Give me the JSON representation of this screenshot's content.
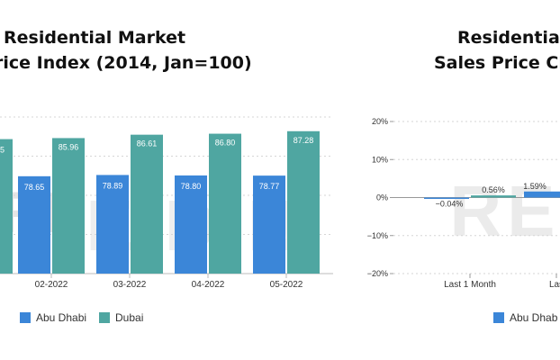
{
  "colors": {
    "abu_dhabi": "#3b86d8",
    "dubai": "#4fa6a1",
    "grid": "#d6d6d6",
    "watermark": "#e2e2e2"
  },
  "left": {
    "title_line1": "Residential Market",
    "title_line2": "rice Index (2014, Jan=100)",
    "watermark": "REIDIN",
    "legend": [
      "Abu Dhabi",
      "Dubai"
    ]
  },
  "right": {
    "title_line1": "Residential",
    "title_line2": "Sales Price Ch",
    "watermark": "REI",
    "legend": [
      "Abu Dhab"
    ]
  },
  "chart_data": [
    {
      "type": "bar",
      "title": "Residential Market rice Index (2014, Jan=100)",
      "categories": [
        "02-2022",
        "03-2022",
        "04-2022",
        "05-2022"
      ],
      "series": [
        {
          "name": "Abu Dhabi",
          "values": [
            78.65,
            78.89,
            78.8,
            78.77
          ]
        },
        {
          "name": "Dubai",
          "values": [
            85.96,
            86.61,
            86.8,
            87.28
          ]
        }
      ],
      "partial_left_label": "5",
      "ylim": [
        60,
        90
      ],
      "grid": true,
      "legend_position": "bottom"
    },
    {
      "type": "bar",
      "title": "Residential Sales Price Ch",
      "categories": [
        "Last 1 Month",
        "Las"
      ],
      "series": [
        {
          "name": "Abu Dhab",
          "values": [
            -0.04,
            1.59
          ]
        },
        {
          "name": "",
          "values": [
            0.56,
            null
          ]
        }
      ],
      "data_labels": [
        "−0.04%",
        "0.56%",
        "1.59%"
      ],
      "yticks": [
        "20%",
        "10%",
        "0%",
        "−10%",
        "−20%"
      ],
      "ylim": [
        -20,
        20
      ],
      "grid": true,
      "legend_position": "bottom"
    }
  ]
}
